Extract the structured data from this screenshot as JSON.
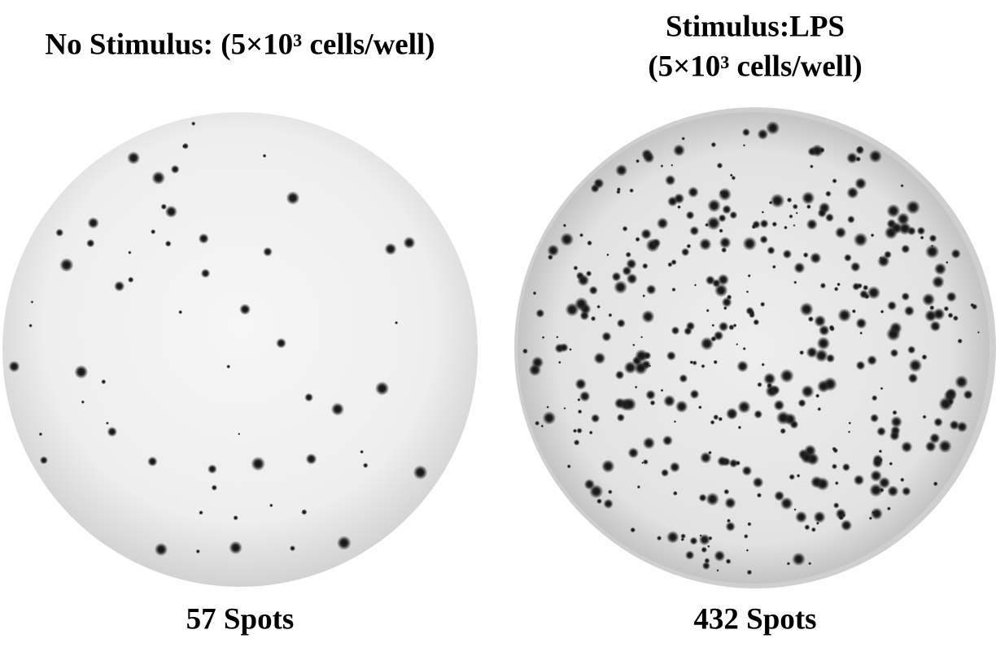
{
  "panels": [
    {
      "title_lines": [
        "No Stimulus: (5×10³ cells/well)"
      ],
      "result": "57 Spots"
    },
    {
      "title_lines": [
        "Stimulus:LPS",
        "(5×10³ cells/well)"
      ],
      "result": "432 Spots"
    }
  ]
}
